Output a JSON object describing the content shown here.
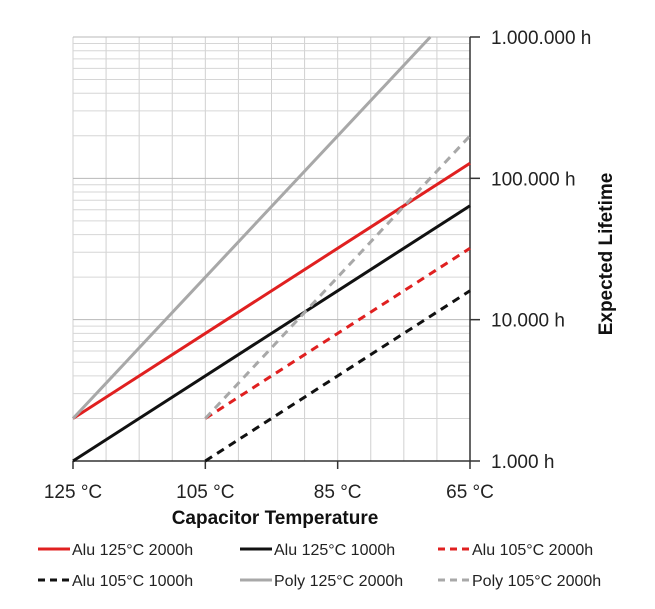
{
  "chart_data": {
    "type": "line",
    "xlabel": "Capacitor Temperature",
    "ylabel": "Expected Lifetime",
    "xscale": "linear",
    "xdirection": "decreasing",
    "yscale": "log",
    "xlim": [
      125,
      65
    ],
    "ylim": [
      1000,
      1000000
    ],
    "grid": true,
    "legend_position": "bottom",
    "x_ticks": [
      {
        "value": 125,
        "label": "125 °C"
      },
      {
        "value": 105,
        "label": "105 °C"
      },
      {
        "value": 85,
        "label": "85 °C"
      },
      {
        "value": 65,
        "label": "65 °C"
      }
    ],
    "y_ticks": [
      {
        "value": 1000,
        "label": "1.000 h"
      },
      {
        "value": 10000,
        "label": "10.000 h"
      },
      {
        "value": 100000,
        "label": "100.000 h"
      },
      {
        "value": 1000000,
        "label": "1.000.000 h"
      }
    ],
    "series": [
      {
        "name": "Alu 125°C 2000h",
        "color": "#e02020",
        "dash": "solid",
        "x": [
          125,
          65
        ],
        "y": [
          2000,
          128000
        ]
      },
      {
        "name": "Alu 125°C 1000h",
        "color": "#111111",
        "dash": "solid",
        "x": [
          125,
          65
        ],
        "y": [
          1000,
          64000
        ]
      },
      {
        "name": "Alu 105°C 2000h",
        "color": "#e02020",
        "dash": "dashed",
        "x": [
          105,
          65
        ],
        "y": [
          2000,
          32000
        ]
      },
      {
        "name": "Alu 105°C 1000h",
        "color": "#111111",
        "dash": "dashed",
        "x": [
          105,
          65
        ],
        "y": [
          1000,
          16000
        ]
      },
      {
        "name": "Poly 125°C 2000h",
        "color": "#a8a8a8",
        "dash": "solid",
        "x": [
          125,
          71
        ],
        "y": [
          2000,
          1000000
        ]
      },
      {
        "name": "Poly 105°C 2000h",
        "color": "#a8a8a8",
        "dash": "dashed",
        "x": [
          105,
          65
        ],
        "y": [
          2000,
          200000
        ]
      }
    ]
  }
}
